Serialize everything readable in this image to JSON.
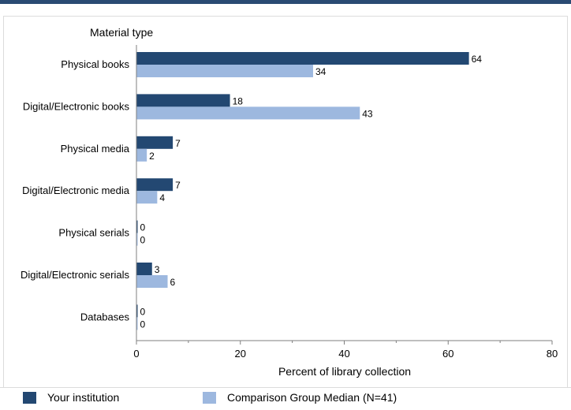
{
  "colors": {
    "accent_bar": "#2a4b73",
    "series_primary": "#234872",
    "series_secondary": "#9db8df",
    "axis": "#7f7f7f",
    "grid": "#d9d9d9"
  },
  "chart_data": {
    "type": "bar",
    "orientation": "horizontal",
    "category_axis_title": "Material type",
    "xlabel": "Percent of library collection",
    "xlim": [
      0,
      80
    ],
    "xticks": [
      0,
      20,
      40,
      60,
      80
    ],
    "grid": false,
    "legend_position": "bottom",
    "categories": [
      "Physical books",
      "Digital/Electronic books",
      "Physical media",
      "Digital/Electronic media",
      "Physical serials",
      "Digital/Electronic serials",
      "Databases"
    ],
    "series": [
      {
        "name": "Your institution",
        "values": [
          64,
          18,
          7,
          7,
          0,
          3,
          0
        ]
      },
      {
        "name": "Comparison Group Median (N=41)",
        "values": [
          34,
          43,
          2,
          4,
          0,
          6,
          0
        ]
      }
    ]
  }
}
